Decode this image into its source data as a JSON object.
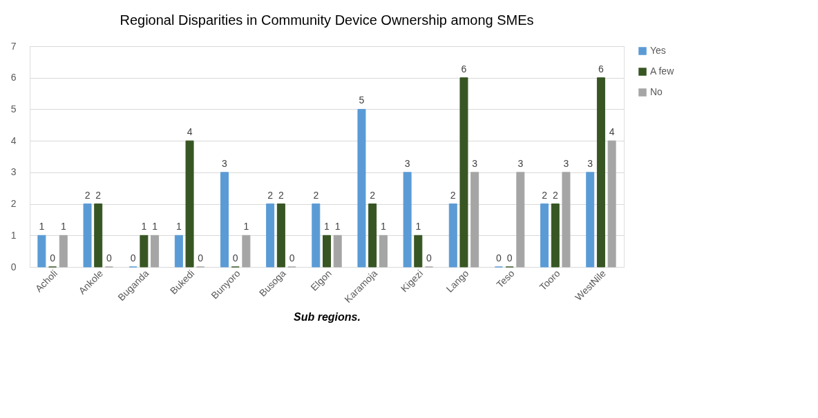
{
  "chart_data": {
    "type": "bar",
    "title": "Regional Disparities in Community Device Ownership among SMEs",
    "xlabel": "Sub regions.",
    "categories": [
      "Acholi",
      "Ankole",
      "Buganda",
      "Bukedi",
      "Bunyoro",
      "Busoga",
      "Elgon",
      "Karamoja",
      "Kigezi",
      "Lango",
      "Teso",
      "Tooro",
      "WestNile"
    ],
    "series": [
      {
        "name": "Yes",
        "color": "#5b9bd5",
        "values": [
          1,
          2,
          0,
          1,
          3,
          2,
          2,
          5,
          3,
          2,
          0,
          2,
          3
        ]
      },
      {
        "name": "A few",
        "color": "#375623",
        "values": [
          0,
          2,
          1,
          4,
          0,
          2,
          1,
          2,
          1,
          6,
          0,
          2,
          6
        ]
      },
      {
        "name": "No",
        "color": "#a5a5a5",
        "values": [
          1,
          0,
          1,
          0,
          1,
          0,
          1,
          1,
          0,
          3,
          3,
          3,
          4
        ]
      }
    ],
    "ylim": [
      0,
      7
    ],
    "yticks": [
      0,
      1,
      2,
      3,
      4,
      5,
      6,
      7
    ],
    "grid": "y",
    "legend": "right",
    "data_labels": true
  }
}
